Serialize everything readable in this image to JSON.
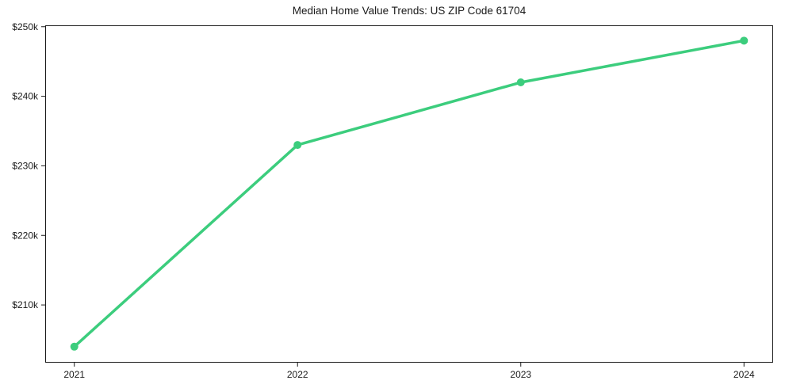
{
  "chart_data": {
    "type": "line",
    "title": "Median Home Value Trends: US ZIP Code 61704",
    "categories": [
      "2021",
      "2022",
      "2023",
      "2024"
    ],
    "series": [
      {
        "name": "Median Home Value",
        "values": [
          204000,
          233000,
          242000,
          248000
        ],
        "value_labels": [
          "$204k",
          "$233k",
          "$242k",
          "$248k"
        ]
      }
    ],
    "xlabel": "",
    "ylabel": "",
    "yticks": [
      {
        "value": 250000,
        "label": "$250k"
      },
      {
        "value": 240000,
        "label": "$240k"
      },
      {
        "value": 230000,
        "label": "$230k"
      },
      {
        "value": 220000,
        "label": "$220k"
      },
      {
        "value": 210000,
        "label": "$210k"
      }
    ],
    "ylim": [
      201700,
      250200
    ],
    "x_margin_frac": 0.04,
    "grid": false,
    "legend": false,
    "colors": {
      "line": "#3ccd7d",
      "marker": "#3ccd7d",
      "axis": "#1a1a1a",
      "text": "#1a1a1a",
      "background": "#ffffff"
    }
  }
}
